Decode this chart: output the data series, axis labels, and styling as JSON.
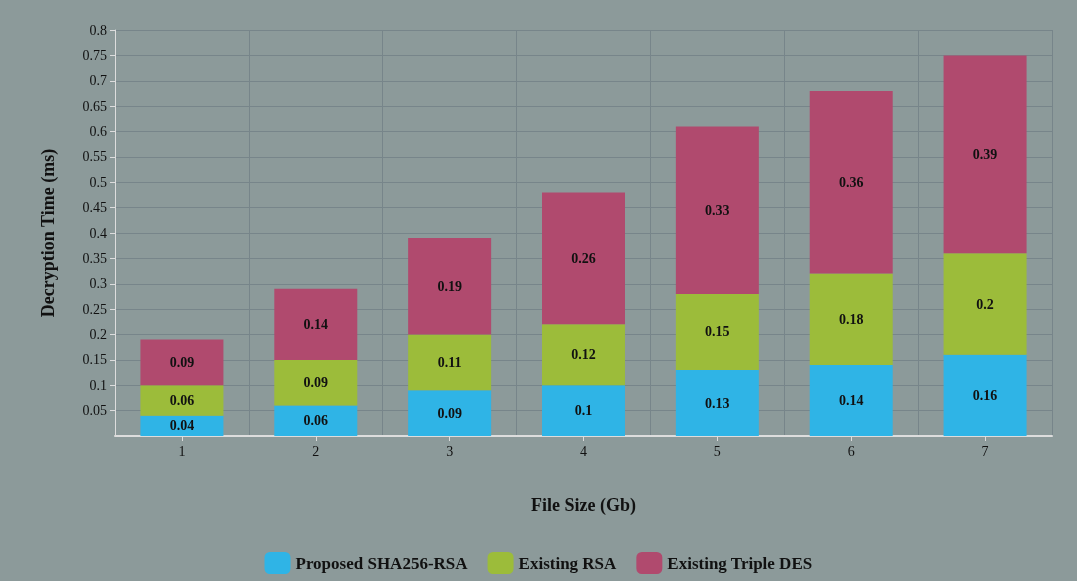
{
  "chart_data": {
    "type": "bar",
    "stacked": true,
    "xlabel": "File Size (Gb)",
    "ylabel": "Decryption Time (ms)",
    "categories": [
      "1",
      "2",
      "3",
      "4",
      "5",
      "6",
      "7"
    ],
    "series": [
      {
        "name": "Proposed SHA256-RSA",
        "color": "#2fb4e6",
        "values": [
          0.04,
          0.06,
          0.09,
          0.1,
          0.13,
          0.14,
          0.16
        ]
      },
      {
        "name": "Existing RSA",
        "color": "#9cbc3a",
        "values": [
          0.06,
          0.09,
          0.11,
          0.12,
          0.15,
          0.18,
          0.2
        ]
      },
      {
        "name": "Existing Triple DES",
        "color": "#b04a6e",
        "values": [
          0.09,
          0.14,
          0.19,
          0.26,
          0.33,
          0.36,
          0.39
        ]
      }
    ],
    "ylim": [
      0,
      0.8
    ],
    "yticks": [
      0.05,
      0.1,
      0.15,
      0.2,
      0.25,
      0.3,
      0.35,
      0.4,
      0.45,
      0.5,
      0.55,
      0.6,
      0.65,
      0.7,
      0.75,
      0.8
    ],
    "grid": true,
    "legend": "bottom",
    "data_labels": true
  }
}
